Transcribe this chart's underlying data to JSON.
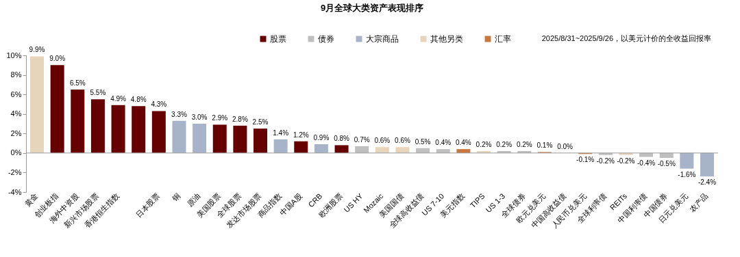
{
  "chart_data": {
    "type": "bar",
    "title": "9月全球大类资产表现排序",
    "annotations": [
      "2025/8/31~2025/9/26，以美元计价的全收益回报率"
    ],
    "categories": [
      "黄金",
      "创业板指",
      "海外中资股",
      "新兴市场股票",
      "香港恒生指数",
      null,
      "日本股票",
      "铜",
      "原油",
      "美国股票",
      "全球股票",
      "发达市场股票",
      "商品指数",
      "中国A股",
      "CRB",
      "欧洲股票",
      "US HY",
      "Mozaic",
      "美国国债",
      "全球高收益债",
      "US 7-10",
      "美元指数",
      "TIPS",
      "US 1-3",
      "全球债券",
      "欧元兑美元",
      "中国高收益债",
      "人民币兑美元",
      "全球利率债",
      "REITs",
      "中国利率债",
      "中国债券",
      "日元兑美元",
      "农产品"
    ],
    "series": [
      {
        "name": "股票",
        "color": "#660000",
        "values": [
          null,
          9.0,
          6.5,
          5.5,
          4.9,
          4.8,
          4.3,
          null,
          null,
          2.9,
          2.8,
          2.5,
          null,
          1.2,
          null,
          0.8,
          null,
          null,
          null,
          null,
          null,
          null,
          null,
          null,
          null,
          null,
          null,
          null,
          null,
          null,
          null,
          null,
          null,
          null
        ],
        "value_labels": [
          null,
          "9.0%",
          "6.5%",
          "5.5%",
          "4.9%",
          "4.8%",
          "4.3%",
          null,
          null,
          "2.9%",
          "2.8%",
          "2.5%",
          null,
          "1.2%",
          null,
          "0.8%",
          null,
          null,
          null,
          null,
          null,
          null,
          null,
          null,
          null,
          null,
          null,
          null,
          null,
          null,
          null,
          null,
          null,
          null
        ]
      },
      {
        "name": "债券",
        "color": "#bfbfbf",
        "values": [
          null,
          null,
          null,
          null,
          null,
          null,
          null,
          null,
          null,
          null,
          null,
          null,
          null,
          null,
          null,
          null,
          0.7,
          null,
          null,
          0.5,
          0.4,
          null,
          null,
          0.2,
          0.2,
          null,
          0.0,
          null,
          -0.2,
          null,
          -0.4,
          -0.5,
          null,
          null
        ],
        "value_labels": [
          null,
          null,
          null,
          null,
          null,
          null,
          null,
          null,
          null,
          null,
          null,
          null,
          null,
          null,
          null,
          null,
          "0.7%",
          null,
          null,
          "0.5%",
          "0.4%",
          null,
          null,
          "0.2%",
          "0.2%",
          null,
          "0.0%",
          null,
          "-0.2%",
          null,
          "-0.4%",
          "-0.5%",
          null,
          null
        ]
      },
      {
        "name": "大宗商品",
        "color": "#a6b3c8",
        "values": [
          null,
          null,
          null,
          null,
          null,
          null,
          null,
          3.3,
          3.0,
          null,
          null,
          null,
          1.4,
          null,
          0.9,
          null,
          null,
          null,
          null,
          null,
          null,
          null,
          null,
          null,
          null,
          null,
          null,
          null,
          null,
          null,
          null,
          null,
          -1.6,
          -2.4
        ],
        "value_labels": [
          null,
          null,
          null,
          null,
          null,
          null,
          null,
          "3.3%",
          "3.0%",
          null,
          null,
          null,
          "1.4%",
          null,
          "0.9%",
          null,
          null,
          null,
          null,
          null,
          null,
          null,
          null,
          null,
          null,
          null,
          null,
          null,
          null,
          null,
          null,
          null,
          "-1.6%",
          "-2.4%"
        ]
      },
      {
        "name": "其他另类",
        "color": "#e6d5bb",
        "values": [
          9.9,
          null,
          null,
          null,
          null,
          null,
          null,
          null,
          null,
          null,
          null,
          null,
          null,
          null,
          null,
          null,
          null,
          0.6,
          0.6,
          null,
          null,
          null,
          0.2,
          null,
          null,
          null,
          null,
          null,
          null,
          -0.2,
          null,
          null,
          null,
          null
        ],
        "value_labels": [
          "9.9%",
          null,
          null,
          null,
          null,
          null,
          null,
          null,
          null,
          null,
          null,
          null,
          null,
          null,
          null,
          null,
          null,
          "0.6%",
          "0.6%",
          null,
          null,
          null,
          "0.2%",
          null,
          null,
          null,
          null,
          null,
          null,
          "-0.2%",
          null,
          null,
          null,
          null
        ]
      },
      {
        "name": "汇率",
        "color": "#c8773e",
        "values": [
          null,
          null,
          null,
          null,
          null,
          null,
          null,
          null,
          null,
          null,
          null,
          null,
          null,
          null,
          null,
          null,
          null,
          null,
          null,
          null,
          null,
          0.4,
          null,
          null,
          null,
          0.1,
          null,
          -0.1,
          null,
          null,
          null,
          null,
          null,
          null
        ],
        "value_labels": [
          null,
          null,
          null,
          null,
          null,
          null,
          null,
          null,
          null,
          null,
          null,
          null,
          null,
          null,
          null,
          null,
          null,
          null,
          null,
          null,
          null,
          "0.4%",
          null,
          null,
          null,
          "0.1%",
          null,
          "-0.1%",
          null,
          null,
          null,
          null,
          null,
          null
        ]
      }
    ],
    "ylim": [
      -4,
      10
    ],
    "yticks": [
      {
        "value": -4,
        "label": "-4%"
      },
      {
        "value": -2,
        "label": "-2%"
      },
      {
        "value": 0,
        "label": "0%"
      },
      {
        "value": 2,
        "label": "2%"
      },
      {
        "value": 4,
        "label": "4%"
      },
      {
        "value": 6,
        "label": "6%"
      },
      {
        "value": 8,
        "label": "8%"
      },
      {
        "value": 10,
        "label": "10%"
      }
    ],
    "legend": "top"
  }
}
